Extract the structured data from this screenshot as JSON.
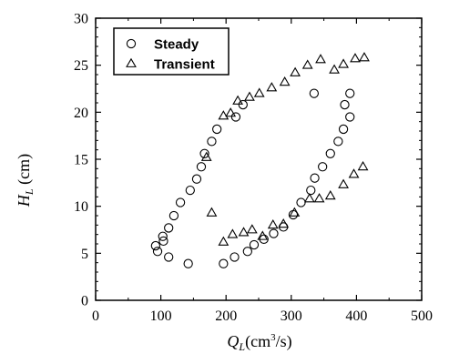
{
  "chart_data": {
    "type": "scatter",
    "xlabel_main": "Q",
    "xlabel_sub": "L",
    "xlabel_unit_pre": "(cm",
    "xlabel_unit_sup": "3",
    "xlabel_unit_post": "/s)",
    "ylabel_main": "H",
    "ylabel_sub": "L",
    "ylabel_unit": " (cm)",
    "xlim": [
      0,
      500
    ],
    "ylim": [
      0,
      30
    ],
    "xticks": [
      0,
      100,
      200,
      300,
      400,
      500
    ],
    "yticks": [
      0,
      5,
      10,
      15,
      20,
      25,
      30
    ],
    "grid": false,
    "legend_position": "top-left",
    "series": [
      {
        "name": "Steady",
        "marker": "circle",
        "points": [
          [
            92,
            5.8
          ],
          [
            95,
            5.2
          ],
          [
            103,
            6.8
          ],
          [
            104,
            6.3
          ],
          [
            112,
            7.7
          ],
          [
            120,
            9.0
          ],
          [
            130,
            10.4
          ],
          [
            145,
            11.7
          ],
          [
            155,
            12.9
          ],
          [
            162,
            14.2
          ],
          [
            167,
            15.6
          ],
          [
            178,
            16.9
          ],
          [
            186,
            18.2
          ],
          [
            215,
            19.5
          ],
          [
            226,
            20.8
          ],
          [
            112,
            4.6
          ],
          [
            142,
            3.9
          ],
          [
            196,
            3.9
          ],
          [
            213,
            4.6
          ],
          [
            233,
            5.2
          ],
          [
            243,
            5.9
          ],
          [
            258,
            6.5
          ],
          [
            273,
            7.1
          ],
          [
            288,
            7.8
          ],
          [
            303,
            9.1
          ],
          [
            315,
            10.4
          ],
          [
            330,
            11.7
          ],
          [
            336,
            13.0
          ],
          [
            348,
            14.2
          ],
          [
            360,
            15.6
          ],
          [
            372,
            16.9
          ],
          [
            380,
            18.2
          ],
          [
            390,
            19.5
          ],
          [
            382,
            20.8
          ],
          [
            390,
            22.0
          ],
          [
            335,
            22.0
          ]
        ]
      },
      {
        "name": "Transient",
        "marker": "triangle",
        "points": [
          [
            170,
            15.2
          ],
          [
            178,
            9.3
          ],
          [
            196,
            19.6
          ],
          [
            207,
            19.9
          ],
          [
            218,
            21.2
          ],
          [
            236,
            21.6
          ],
          [
            251,
            22.0
          ],
          [
            270,
            22.6
          ],
          [
            290,
            23.2
          ],
          [
            306,
            24.2
          ],
          [
            325,
            25.0
          ],
          [
            345,
            25.6
          ],
          [
            366,
            24.5
          ],
          [
            380,
            25.1
          ],
          [
            398,
            25.7
          ],
          [
            412,
            25.8
          ],
          [
            196,
            6.2
          ],
          [
            210,
            7.0
          ],
          [
            227,
            7.2
          ],
          [
            240,
            7.5
          ],
          [
            256,
            6.8
          ],
          [
            272,
            8.0
          ],
          [
            288,
            8.1
          ],
          [
            305,
            9.3
          ],
          [
            328,
            10.8
          ],
          [
            343,
            10.8
          ],
          [
            360,
            11.1
          ],
          [
            380,
            12.3
          ],
          [
            396,
            13.4
          ],
          [
            410,
            14.2
          ]
        ]
      }
    ]
  }
}
